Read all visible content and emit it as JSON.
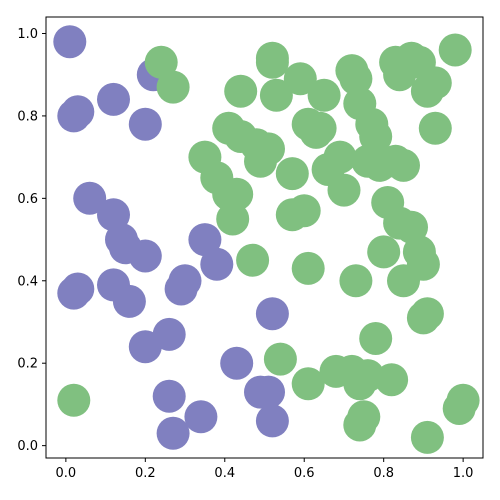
{
  "chart_data": {
    "type": "scatter",
    "title": "",
    "xlabel": "",
    "ylabel": "",
    "xlim": [
      -0.05,
      1.05
    ],
    "ylim": [
      -0.03,
      1.04
    ],
    "grid": false,
    "x_ticks": [
      "0.0",
      "0.2",
      "0.4",
      "0.6",
      "0.8",
      "1.0"
    ],
    "y_ticks": [
      "0.0",
      "0.2",
      "0.4",
      "0.6",
      "0.8",
      "1.0"
    ],
    "series": [
      {
        "color": "#8080c0",
        "points": [
          [
            0.01,
            0.98
          ],
          [
            0.02,
            0.8
          ],
          [
            0.03,
            0.81
          ],
          [
            0.06,
            0.6
          ],
          [
            0.12,
            0.84
          ],
          [
            0.12,
            0.56
          ],
          [
            0.14,
            0.5
          ],
          [
            0.15,
            0.48
          ],
          [
            0.2,
            0.78
          ],
          [
            0.2,
            0.46
          ],
          [
            0.22,
            0.9
          ],
          [
            0.02,
            0.37
          ],
          [
            0.03,
            0.38
          ],
          [
            0.12,
            0.39
          ],
          [
            0.16,
            0.35
          ],
          [
            0.2,
            0.24
          ],
          [
            0.26,
            0.27
          ],
          [
            0.26,
            0.12
          ],
          [
            0.27,
            0.03
          ],
          [
            0.29,
            0.38
          ],
          [
            0.3,
            0.4
          ],
          [
            0.35,
            0.5
          ],
          [
            0.38,
            0.44
          ],
          [
            0.34,
            0.07
          ],
          [
            0.43,
            0.2
          ],
          [
            0.49,
            0.13
          ],
          [
            0.52,
            0.32
          ],
          [
            0.51,
            0.13
          ],
          [
            0.52,
            0.06
          ]
        ]
      },
      {
        "color": "#80c080",
        "points": [
          [
            0.24,
            0.93
          ],
          [
            0.27,
            0.87
          ],
          [
            0.44,
            0.86
          ],
          [
            0.52,
            0.94
          ],
          [
            0.52,
            0.93
          ],
          [
            0.53,
            0.85
          ],
          [
            0.59,
            0.89
          ],
          [
            0.65,
            0.85
          ],
          [
            0.72,
            0.91
          ],
          [
            0.73,
            0.89
          ],
          [
            0.74,
            0.83
          ],
          [
            0.83,
            0.93
          ],
          [
            0.84,
            0.9
          ],
          [
            0.87,
            0.94
          ],
          [
            0.89,
            0.93
          ],
          [
            0.91,
            0.86
          ],
          [
            0.93,
            0.88
          ],
          [
            0.98,
            0.96
          ],
          [
            0.41,
            0.77
          ],
          [
            0.44,
            0.75
          ],
          [
            0.48,
            0.73
          ],
          [
            0.51,
            0.72
          ],
          [
            0.49,
            0.69
          ],
          [
            0.35,
            0.7
          ],
          [
            0.38,
            0.65
          ],
          [
            0.41,
            0.61
          ],
          [
            0.43,
            0.61
          ],
          [
            0.42,
            0.55
          ],
          [
            0.57,
            0.66
          ],
          [
            0.61,
            0.78
          ],
          [
            0.63,
            0.76
          ],
          [
            0.64,
            0.77
          ],
          [
            0.66,
            0.67
          ],
          [
            0.69,
            0.7
          ],
          [
            0.7,
            0.62
          ],
          [
            0.77,
            0.78
          ],
          [
            0.78,
            0.75
          ],
          [
            0.76,
            0.69
          ],
          [
            0.79,
            0.68
          ],
          [
            0.83,
            0.69
          ],
          [
            0.85,
            0.68
          ],
          [
            0.93,
            0.77
          ],
          [
            0.57,
            0.56
          ],
          [
            0.6,
            0.57
          ],
          [
            0.47,
            0.45
          ],
          [
            0.61,
            0.43
          ],
          [
            0.73,
            0.4
          ],
          [
            0.81,
            0.59
          ],
          [
            0.84,
            0.54
          ],
          [
            0.8,
            0.47
          ],
          [
            0.87,
            0.53
          ],
          [
            0.89,
            0.47
          ],
          [
            0.9,
            0.44
          ],
          [
            0.85,
            0.4
          ],
          [
            0.9,
            0.31
          ],
          [
            0.91,
            0.32
          ],
          [
            0.02,
            0.11
          ],
          [
            0.54,
            0.21
          ],
          [
            0.61,
            0.15
          ],
          [
            0.68,
            0.18
          ],
          [
            0.72,
            0.18
          ],
          [
            0.76,
            0.17
          ],
          [
            0.74,
            0.15
          ],
          [
            0.75,
            0.07
          ],
          [
            0.74,
            0.05
          ],
          [
            0.78,
            0.26
          ],
          [
            0.82,
            0.16
          ],
          [
            0.91,
            0.02
          ],
          [
            0.99,
            0.09
          ],
          [
            1.0,
            0.11
          ]
        ]
      }
    ]
  }
}
